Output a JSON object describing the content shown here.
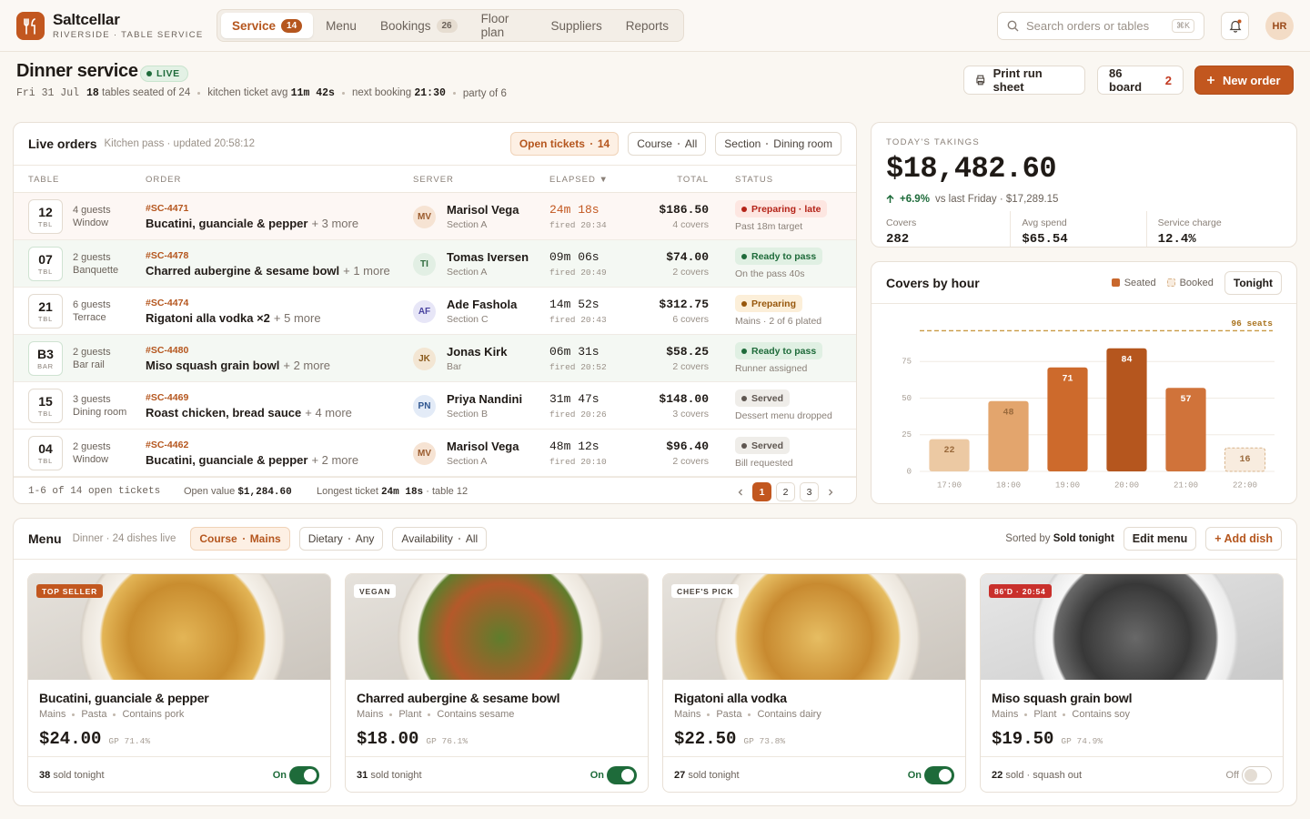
{
  "app": {
    "name": "Saltcellar",
    "tagline": "RIVERSIDE · TABLE SERVICE"
  },
  "nav": [
    {
      "label": "Service",
      "count": 14,
      "active": true
    },
    {
      "label": "Menu"
    },
    {
      "label": "Bookings",
      "count": 26
    },
    {
      "label": "Floor plan"
    },
    {
      "label": "Suppliers"
    },
    {
      "label": "Reports"
    }
  ],
  "search": {
    "placeholder": "Search orders or tables",
    "shortcut": "⌘K"
  },
  "user": {
    "initials": "HR"
  },
  "header": {
    "title": "Dinner service",
    "status": "LIVE",
    "date": "Fri 31 Jul",
    "seated": "18",
    "seated_text": "tables seated of 24",
    "ticket_avg_label": "kitchen ticket avg",
    "ticket_avg": "11m 42s",
    "next_booking_label": "next booking",
    "next_booking": "21:30",
    "party": "party of 6"
  },
  "actions": {
    "print": "Print run sheet",
    "board": "86 board",
    "board_count": 2,
    "new_order": "New order"
  },
  "live_orders": {
    "title": "Live orders",
    "subtitle": "Kitchen pass · updated 20:58:12",
    "filters": [
      {
        "label": "Open tickets",
        "value": "14",
        "active": true
      },
      {
        "label": "Course",
        "value": "All"
      },
      {
        "label": "Section",
        "value": "Dining room"
      }
    ],
    "columns": [
      "TABLE",
      "ORDER",
      "SERVER",
      "ELAPSED ▼",
      "TOTAL",
      "STATUS"
    ],
    "rows": [
      {
        "table": "12",
        "table_kind": "TBL",
        "guests": "4 guests",
        "area": "Window",
        "order_id": "#SC-4471",
        "dish": "Bucatini, guanciale & pepper",
        "more": "+ 3 more",
        "initials": "MV",
        "server": "Marisol Vega",
        "section": "Section A",
        "elapsed": "24m 18s",
        "fired": "fired 20:34",
        "total": "$186.50",
        "covers": "4 covers",
        "status": "Preparing · late",
        "note": "Past 18m target",
        "status_tone": "late"
      },
      {
        "table": "07",
        "table_kind": "TBL",
        "guests": "2 guests",
        "area": "Banquette",
        "order_id": "#SC-4478",
        "dish": "Charred aubergine & sesame bowl",
        "more": "+ 1 more",
        "initials": "TI",
        "server": "Tomas Iversen",
        "section": "Section A",
        "elapsed": "09m 06s",
        "fired": "fired 20:49",
        "total": "$74.00",
        "covers": "2 covers",
        "status": "Ready to pass",
        "note": "On the pass 40s",
        "status_tone": "ready"
      },
      {
        "table": "21",
        "table_kind": "TBL",
        "guests": "6 guests",
        "area": "Terrace",
        "order_id": "#SC-4474",
        "dish": "Rigatoni alla vodka ×2",
        "more": "+ 5 more",
        "initials": "AF",
        "server": "Ade Fashola",
        "section": "Section C",
        "elapsed": "14m 52s",
        "fired": "fired 20:43",
        "total": "$312.75",
        "covers": "6 covers",
        "status": "Preparing",
        "note": "Mains · 2 of 6 plated",
        "status_tone": "preparing"
      },
      {
        "table": "B3",
        "table_kind": "BAR",
        "guests": "2 guests",
        "area": "Bar rail",
        "order_id": "#SC-4480",
        "dish": "Miso squash grain bowl",
        "more": "+ 2 more",
        "initials": "JK",
        "server": "Jonas Kirk",
        "section": "Bar",
        "elapsed": "06m 31s",
        "fired": "fired 20:52",
        "total": "$58.25",
        "covers": "2 covers",
        "status": "Ready to pass",
        "note": "Runner assigned",
        "status_tone": "ready"
      },
      {
        "table": "15",
        "table_kind": "TBL",
        "guests": "3 guests",
        "area": "Dining room",
        "order_id": "#SC-4469",
        "dish": "Roast chicken, bread sauce",
        "more": "+ 4 more",
        "initials": "PN",
        "server": "Priya Nandini",
        "section": "Section B",
        "elapsed": "31m 47s",
        "fired": "fired 20:26",
        "total": "$148.00",
        "covers": "3 covers",
        "status": "Served",
        "note": "Dessert menu dropped",
        "status_tone": "served"
      },
      {
        "table": "04",
        "table_kind": "TBL",
        "guests": "2 guests",
        "area": "Window",
        "order_id": "#SC-4462",
        "dish": "Bucatini, guanciale & pepper",
        "more": "+ 2 more",
        "initials": "MV",
        "server": "Marisol Vega",
        "section": "Section A",
        "elapsed": "48m 12s",
        "fired": "fired 20:10",
        "total": "$96.40",
        "covers": "2 covers",
        "status": "Served",
        "note": "Bill requested",
        "status_tone": "served"
      }
    ],
    "footer": {
      "range": "1-6 of 14 open tickets",
      "open_value_label": "Open value",
      "open_value": "$1,284.60",
      "longest_label": "Longest ticket",
      "longest": "24m 18s",
      "longest_table": "· table 12"
    },
    "pages": [
      {
        "label": "1",
        "current": true
      },
      {
        "label": "2"
      },
      {
        "label": "3"
      }
    ]
  },
  "takings": {
    "label": "TODAY'S TAKINGS",
    "amount": "$18,482.60",
    "change": "+6.9%",
    "comparison": "vs last Friday · $17,289.15",
    "stats": [
      {
        "label": "Covers",
        "value": "282"
      },
      {
        "label": "Avg spend",
        "value": "$65.54"
      },
      {
        "label": "Service charge",
        "value": "12.4%"
      }
    ]
  },
  "chart_data": {
    "type": "bar",
    "title": "Covers by hour",
    "button": "Tonight",
    "categories": [
      "17:00",
      "18:00",
      "19:00",
      "20:00",
      "21:00",
      "22:00"
    ],
    "series": [
      {
        "name": "Seated",
        "color": "#c8672c",
        "colors": [
          "#ecc9a3",
          "#e3a56d",
          "#cd6a2c",
          "#b5561e",
          "#d0733a",
          "#c8672c"
        ],
        "values": [
          22,
          48,
          71,
          84,
          57,
          null
        ]
      },
      {
        "name": "Booked",
        "color": "#f8ecdf",
        "style": "dashed",
        "values": [
          null,
          null,
          null,
          null,
          null,
          16
        ]
      }
    ],
    "reference": {
      "value": 96,
      "label": "96 seats"
    },
    "ylim": [
      0,
      105
    ],
    "yticks": [
      0,
      25,
      50,
      75
    ],
    "grid": true
  },
  "menu": {
    "title": "Menu",
    "subtitle": "Dinner · 24 dishes live",
    "filters": [
      {
        "label": "Course",
        "value": "Mains",
        "active": true
      },
      {
        "label": "Dietary",
        "value": "Any"
      },
      {
        "label": "Availability",
        "value": "All"
      }
    ],
    "sort_label": "Sorted by",
    "sort_value": "Sold tonight",
    "edit": "Edit menu",
    "add": "+ Add dish",
    "dishes": [
      {
        "tag": "TOP SELLER",
        "tag_style": "accent",
        "name": "Bucatini, guanciale & pepper",
        "tags": [
          "Mains",
          "Pasta",
          "Contains pork"
        ],
        "price": "$24.00",
        "gp": "GP 71.4%",
        "sold": "38",
        "sold_text": "sold tonight",
        "availability": "On",
        "available": true
      },
      {
        "tag": "VEGAN",
        "tag_style": "plain",
        "name": "Charred aubergine & sesame bowl",
        "tags": [
          "Mains",
          "Plant",
          "Contains sesame"
        ],
        "price": "$18.00",
        "gp": "GP 76.1%",
        "sold": "31",
        "sold_text": "sold tonight",
        "availability": "On",
        "available": true
      },
      {
        "tag": "CHEF'S PICK",
        "tag_style": "plain",
        "name": "Rigatoni alla vodka",
        "tags": [
          "Mains",
          "Pasta",
          "Contains dairy"
        ],
        "price": "$22.50",
        "gp": "GP 73.8%",
        "sold": "27",
        "sold_text": "sold tonight",
        "availability": "On",
        "available": true
      },
      {
        "tag": "86'D · 20:54",
        "tag_style": "alert",
        "name": "Miso squash grain bowl",
        "tags": [
          "Mains",
          "Plant",
          "Contains soy"
        ],
        "price": "$19.50",
        "gp": "GP 74.9%",
        "sold": "22",
        "sold_text": "sold · squash out",
        "availability": "Off",
        "available": false
      }
    ]
  }
}
